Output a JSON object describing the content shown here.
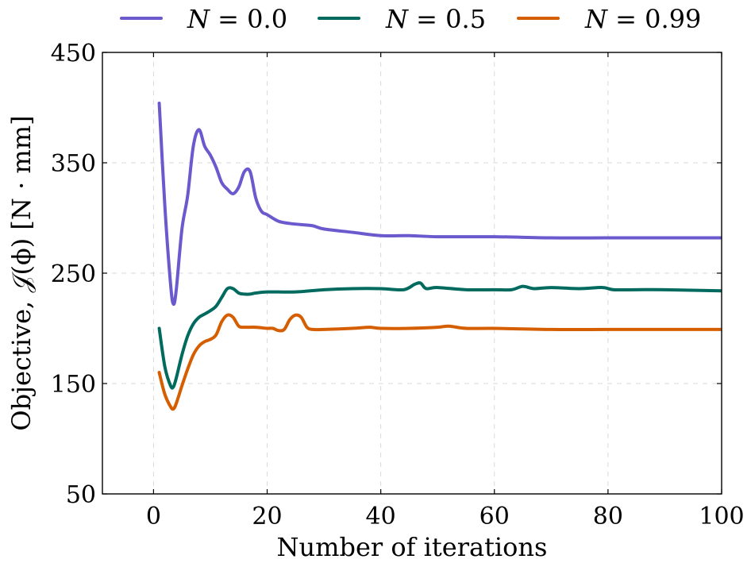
{
  "chart_data": {
    "type": "line",
    "xlabel": "Number of iterations",
    "ylabel": "Objective, 𝒥(ϕ) [N · mm]",
    "xlim": [
      -9,
      100
    ],
    "ylim": [
      50,
      450
    ],
    "xticks": [
      0,
      20,
      40,
      60,
      80,
      100
    ],
    "yticks": [
      50,
      150,
      250,
      350,
      450
    ],
    "grid": true,
    "legend_position": "top",
    "series": [
      {
        "name": "N = 0.0",
        "legend_var": "N",
        "legend_eq": " = 0.0",
        "color": "#6a5acd",
        "x": [
          1,
          2,
          3,
          3.5,
          4,
          5,
          6,
          7,
          8,
          9,
          10,
          11,
          12,
          13,
          14,
          15,
          16,
          17,
          18,
          19,
          20,
          22,
          24,
          26,
          28,
          30,
          35,
          40,
          45,
          50,
          60,
          70,
          80,
          90,
          100
        ],
        "y": [
          404,
          310,
          240,
          222,
          235,
          290,
          320,
          365,
          380,
          365,
          357,
          346,
          332,
          326,
          322,
          328,
          342,
          342,
          318,
          306,
          303,
          297,
          295,
          294,
          293,
          290,
          287,
          284,
          284,
          283,
          283,
          282,
          282,
          282,
          282
        ]
      },
      {
        "name": "N = 0.5",
        "legend_var": "N",
        "legend_eq": " = 0.5",
        "color": "#006a5f",
        "x": [
          1,
          2,
          3,
          3.5,
          4,
          5,
          6,
          7,
          8,
          9,
          10,
          11,
          12,
          13,
          14,
          15,
          16,
          17,
          18,
          20,
          25,
          30,
          35,
          40,
          44,
          46,
          47,
          48,
          50,
          55,
          60,
          63,
          65,
          67,
          70,
          75,
          79,
          81,
          85,
          90,
          100
        ],
        "y": [
          200,
          165,
          148,
          147,
          155,
          176,
          193,
          204,
          210,
          213,
          216,
          220,
          228,
          236,
          236,
          232,
          231,
          231,
          232,
          233,
          233,
          235,
          236,
          236,
          235,
          240,
          241,
          236,
          237,
          235,
          235,
          235,
          238,
          236,
          237,
          236,
          237,
          235,
          235,
          235,
          234
        ]
      },
      {
        "name": "N = 0.99",
        "legend_var": "N",
        "legend_eq": " = 0.99",
        "color": "#d55e00",
        "x": [
          1,
          2,
          3,
          3.5,
          4,
          5,
          6,
          7,
          8,
          9,
          10,
          11,
          12,
          13,
          14,
          15,
          16,
          18,
          20,
          21,
          22,
          23,
          24,
          25,
          26,
          27,
          28,
          30,
          35,
          38,
          40,
          45,
          50,
          52,
          55,
          60,
          70,
          80,
          90,
          100
        ],
        "y": [
          160,
          140,
          129,
          127,
          132,
          148,
          163,
          176,
          184,
          188,
          190,
          194,
          206,
          212,
          210,
          202,
          201,
          201,
          200,
          200,
          198,
          199,
          208,
          212,
          210,
          201,
          199,
          199,
          200,
          201,
          200,
          200,
          201,
          202,
          200,
          200,
          199,
          199,
          199,
          199
        ]
      }
    ]
  }
}
